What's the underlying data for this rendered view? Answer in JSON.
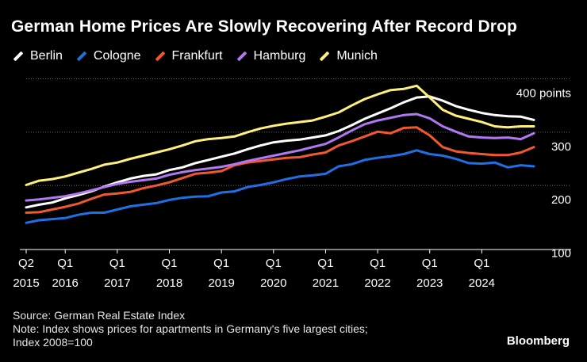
{
  "chart_data": {
    "type": "line",
    "title": "German Home Prices Are Slowly Recovering After Record Drop",
    "y_unit_label": "points",
    "ylim": [
      80,
      400
    ],
    "yticks": [
      100,
      200,
      300,
      400
    ],
    "x_start": "2015 Q2",
    "x_end": "2024 Q2",
    "xtick_labels": [
      {
        "quarter": "Q2",
        "year": "2015",
        "index": 0
      },
      {
        "quarter": "Q1",
        "year": "2016",
        "index": 3
      },
      {
        "quarter": "Q1",
        "year": "2017",
        "index": 7
      },
      {
        "quarter": "Q1",
        "year": "2018",
        "index": 11
      },
      {
        "quarter": "Q1",
        "year": "2019",
        "index": 15
      },
      {
        "quarter": "Q1",
        "year": "2020",
        "index": 19
      },
      {
        "quarter": "Q1",
        "year": "2021",
        "index": 23
      },
      {
        "quarter": "Q1",
        "year": "2022",
        "index": 27
      },
      {
        "quarter": "Q1",
        "year": "2023",
        "index": 31
      },
      {
        "quarter": "Q1",
        "year": "2024",
        "index": 35
      }
    ],
    "series": [
      {
        "name": "Berlin",
        "color": "#ffffff",
        "values": [
          159,
          164,
          168,
          176,
          182,
          189,
          198,
          206,
          213,
          218,
          221,
          229,
          234,
          242,
          248,
          254,
          260,
          268,
          275,
          281,
          284,
          286,
          290,
          294,
          302,
          313,
          325,
          335,
          345,
          356,
          365,
          367,
          359,
          349,
          342,
          336,
          332,
          330,
          329,
          323
        ]
      },
      {
        "name": "Cologne",
        "color": "#1f6fe5",
        "values": [
          130,
          135,
          137,
          139,
          145,
          149,
          149,
          155,
          161,
          164,
          167,
          173,
          177,
          179,
          180,
          187,
          189,
          197,
          201,
          206,
          212,
          217,
          219,
          222,
          236,
          240,
          248,
          252,
          255,
          259,
          266,
          259,
          256,
          250,
          242,
          241,
          243,
          234,
          238,
          236
        ]
      },
      {
        "name": "Frankfurt",
        "color": "#f2572d",
        "values": [
          149,
          150,
          155,
          160,
          166,
          175,
          183,
          185,
          188,
          195,
          200,
          206,
          214,
          222,
          224,
          227,
          238,
          243,
          246,
          249,
          252,
          253,
          258,
          262,
          275,
          283,
          292,
          301,
          298,
          308,
          309,
          294,
          272,
          264,
          261,
          259,
          257,
          257,
          262,
          272
        ]
      },
      {
        "name": "Hamburg",
        "color": "#b277f2",
        "values": [
          172,
          174,
          177,
          180,
          185,
          191,
          197,
          203,
          207,
          210,
          213,
          220,
          225,
          229,
          232,
          235,
          240,
          246,
          251,
          256,
          261,
          266,
          272,
          278,
          290,
          303,
          315,
          322,
          327,
          332,
          334,
          326,
          311,
          301,
          292,
          290,
          289,
          290,
          287,
          298
        ]
      },
      {
        "name": "Munich",
        "color": "#fff07a",
        "values": [
          201,
          209,
          212,
          217,
          224,
          231,
          239,
          243,
          250,
          256,
          262,
          268,
          275,
          283,
          287,
          289,
          292,
          300,
          307,
          312,
          316,
          319,
          322,
          329,
          337,
          350,
          362,
          371,
          379,
          381,
          387,
          365,
          342,
          331,
          325,
          319,
          311,
          309,
          311,
          311
        ]
      }
    ]
  },
  "footer": {
    "source": "Source: German Real Estate Index",
    "note_line1": "Note: Index shows prices for apartments in Germany's five largest cities;",
    "note_line2": "Index 2008=100"
  },
  "brand": "Bloomberg"
}
